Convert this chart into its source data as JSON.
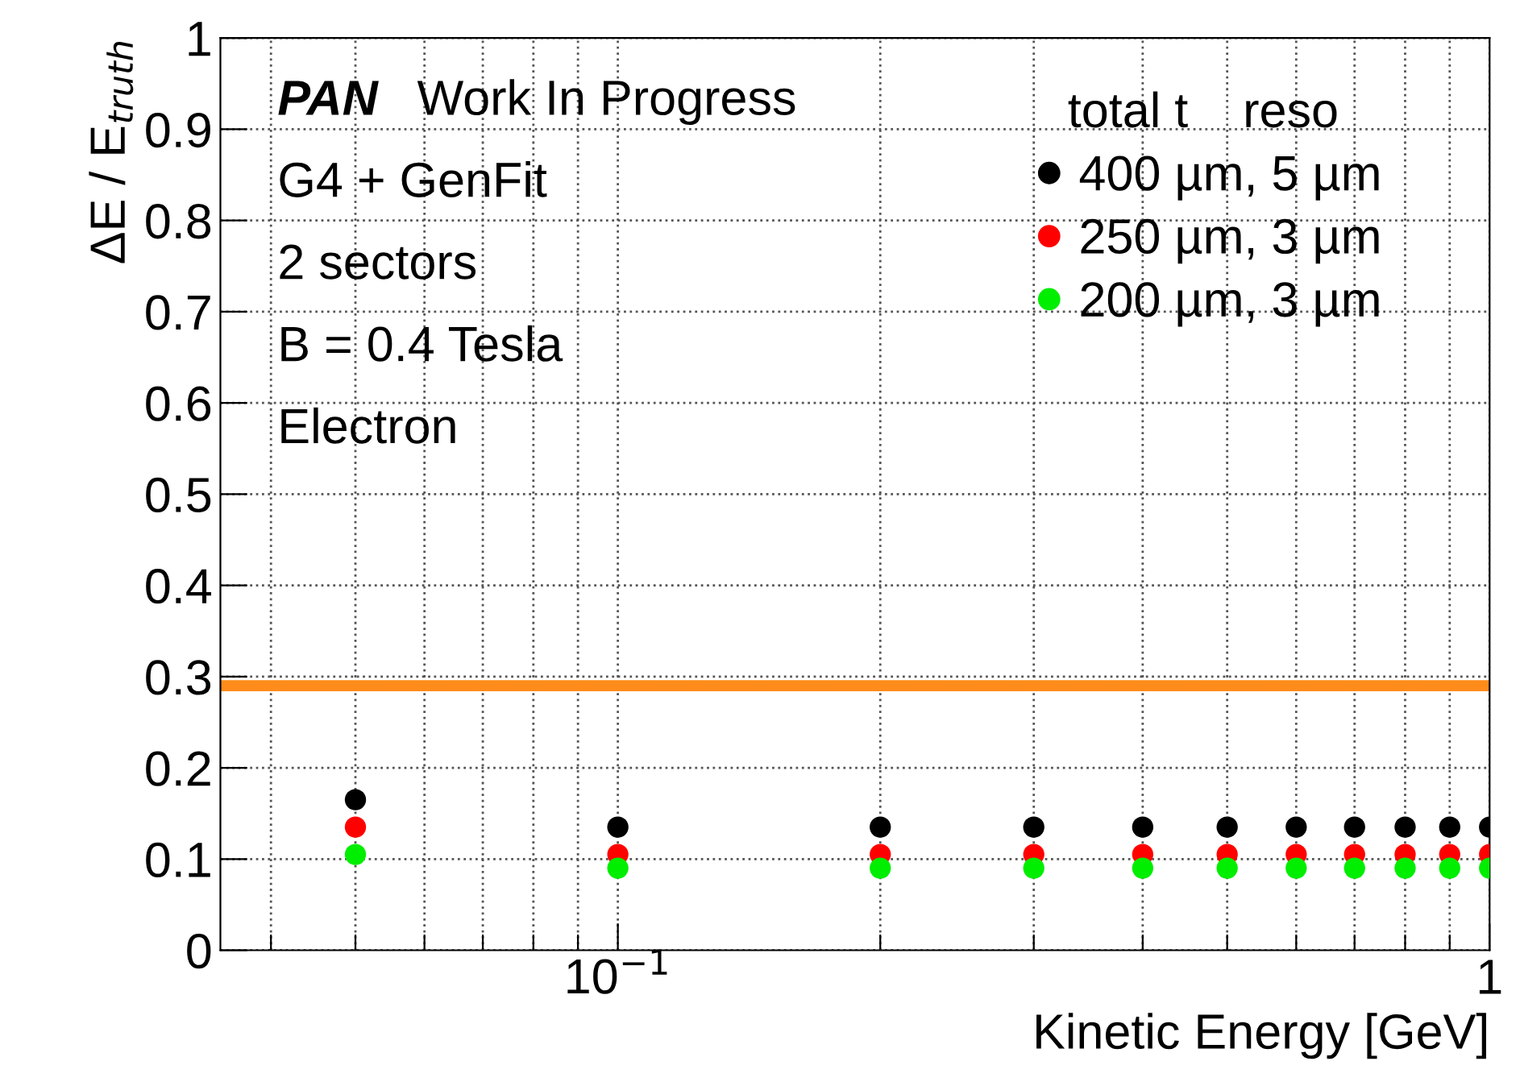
{
  "chart_data": {
    "type": "scatter",
    "xlabel": "Kinetic Energy [GeV]",
    "ylabel": "ΔE / E$_{truth}$",
    "legend_title": "total t    reso",
    "x": [
      0.05,
      0.1,
      0.2,
      0.3,
      0.4,
      0.5,
      0.6,
      0.7,
      0.8,
      0.9,
      1.0
    ],
    "series": [
      {
        "name": "400 µm, 5 µm",
        "color": "#000000",
        "values": [
          0.165,
          0.135,
          0.135,
          0.135,
          0.135,
          0.135,
          0.135,
          0.135,
          0.135,
          0.135,
          0.135
        ]
      },
      {
        "name": "250 µm, 3 µm",
        "color": "#ff0000",
        "values": [
          0.135,
          0.105,
          0.105,
          0.105,
          0.105,
          0.105,
          0.105,
          0.105,
          0.105,
          0.105,
          0.105
        ]
      },
      {
        "name": "200 µm, 3 µm",
        "color": "#00ee00",
        "values": [
          0.105,
          0.09,
          0.09,
          0.09,
          0.09,
          0.09,
          0.09,
          0.09,
          0.09,
          0.09,
          0.09
        ]
      }
    ],
    "log": "x",
    "xlim": [
      0.035,
      1
    ],
    "xticks": [
      {
        "value": 0.04,
        "label": null
      },
      {
        "value": 0.05,
        "label": null
      },
      {
        "value": 0.06,
        "label": null
      },
      {
        "value": 0.07,
        "label": null
      },
      {
        "value": 0.08,
        "label": null
      },
      {
        "value": 0.09,
        "label": null
      },
      {
        "value": 0.1,
        "label": "10$^{−1}$"
      },
      {
        "value": 0.2,
        "label": null
      },
      {
        "value": 0.3,
        "label": null
      },
      {
        "value": 0.4,
        "label": null
      },
      {
        "value": 0.5,
        "label": null
      },
      {
        "value": 0.6,
        "label": null
      },
      {
        "value": 0.7,
        "label": null
      },
      {
        "value": 0.8,
        "label": null
      },
      {
        "value": 0.9,
        "label": null
      },
      1
    ],
    "ylim": [
      0,
      1
    ],
    "yticks": [
      0,
      0.1,
      0.2,
      0.3,
      0.4,
      0.5,
      0.6,
      0.7,
      0.8,
      0.9,
      1
    ],
    "ref_lines": [
      {
        "axis": "y",
        "value": 0.29,
        "color": "#ff8c1a"
      }
    ],
    "annotations": [
      "PAN",
      "Work In Progress",
      "G4 + GenFit",
      "2 sectors",
      "B = 0.4 Tesla",
      "Electron"
    ],
    "grid": true,
    "legend": "top right",
    "marker": "circle"
  }
}
